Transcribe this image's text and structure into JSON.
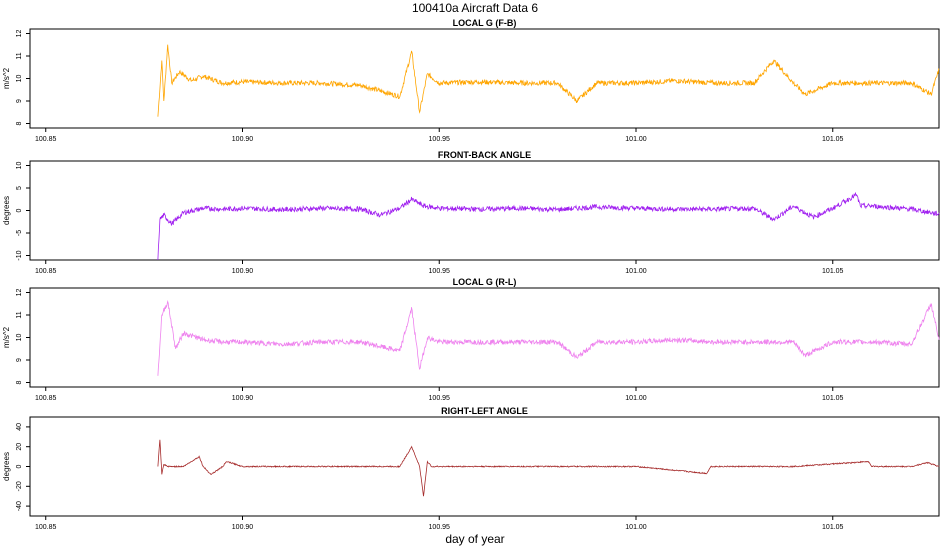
{
  "figure": {
    "title": "100410a   Aircraft Data 6",
    "xlabel": "day of year"
  },
  "chart_data": [
    {
      "type": "line",
      "title": "LOCAL G (F-B)",
      "ylabel": "m/s^2",
      "color": "#FFA500",
      "xlim": [
        100.846,
        101.077
      ],
      "ylim": [
        7.8,
        12.2
      ],
      "xticks": [
        100.85,
        100.9,
        100.95,
        101.0,
        101.05
      ],
      "xtick_labels": [
        "100.85",
        "100.90",
        "100.95",
        "101.00",
        "101.05"
      ],
      "yticks": [
        8,
        9,
        10,
        11,
        12
      ],
      "ytick_labels": [
        "8",
        "9",
        "10",
        "11",
        "12"
      ],
      "series": [
        {
          "x": [
            100.8785,
            100.8795,
            100.88,
            100.881,
            100.882,
            100.884,
            100.887,
            100.89,
            100.895,
            100.9,
            100.91,
            100.92,
            100.93,
            100.94,
            100.943,
            100.945,
            100.947,
            100.95,
            100.96,
            100.97,
            100.98,
            100.985,
            100.99,
            101.0,
            101.01,
            101.02,
            101.03,
            101.035,
            101.04,
            101.043,
            101.05,
            101.06,
            101.07,
            101.075,
            101.077
          ],
          "y": [
            8.3,
            10.8,
            9.0,
            11.5,
            9.8,
            10.3,
            9.9,
            10.1,
            9.8,
            9.85,
            9.8,
            9.8,
            9.7,
            9.2,
            11.2,
            8.5,
            10.2,
            9.8,
            9.85,
            9.8,
            9.8,
            9.0,
            9.8,
            9.8,
            9.9,
            9.8,
            9.8,
            10.8,
            9.8,
            9.3,
            9.8,
            9.8,
            9.8,
            9.3,
            10.4
          ]
        }
      ]
    },
    {
      "type": "line",
      "title": "FRONT-BACK ANGLE",
      "ylabel": "degrees",
      "color": "#A020F0",
      "xlim": [
        100.846,
        101.077
      ],
      "ylim": [
        -11,
        11
      ],
      "xticks": [
        100.85,
        100.9,
        100.95,
        101.0,
        101.05
      ],
      "xtick_labels": [
        "100.85",
        "100.90",
        "100.95",
        "101.00",
        "101.05"
      ],
      "yticks": [
        -10,
        -5,
        0,
        5,
        10
      ],
      "ytick_labels": [
        "-10",
        "-5",
        "0",
        "5",
        "10"
      ],
      "series": [
        {
          "x": [
            100.8785,
            100.879,
            100.88,
            100.882,
            100.885,
            100.89,
            100.895,
            100.9,
            100.91,
            100.92,
            100.93,
            100.935,
            100.94,
            100.943,
            100.946,
            100.95,
            100.96,
            100.97,
            100.98,
            100.99,
            101.0,
            101.01,
            101.02,
            101.03,
            101.035,
            101.04,
            101.045,
            101.05,
            101.056,
            101.057,
            101.06,
            101.07,
            101.077
          ],
          "y": [
            -11,
            -2,
            -1,
            -3,
            -0.5,
            0.5,
            0.3,
            0.5,
            0.2,
            0.5,
            0.3,
            -1,
            0.5,
            2.5,
            1,
            0.5,
            0.3,
            0.5,
            0.2,
            0.8,
            0.5,
            0.3,
            0.3,
            0.5,
            -2,
            1,
            -1.5,
            0.5,
            3.5,
            1,
            1,
            0.3,
            -0.8
          ]
        }
      ]
    },
    {
      "type": "line",
      "title": "LOCAL G (R-L)",
      "ylabel": "m/s^2",
      "color": "#EE82EE",
      "xlim": [
        100.846,
        101.077
      ],
      "ylim": [
        7.8,
        12.2
      ],
      "xticks": [
        100.85,
        100.9,
        100.95,
        101.0,
        101.05
      ],
      "xtick_labels": [
        "100.85",
        "100.90",
        "100.95",
        "101.00",
        "101.05"
      ],
      "yticks": [
        8,
        9,
        10,
        11,
        12
      ],
      "ytick_labels": [
        "8",
        "9",
        "10",
        "11",
        "12"
      ],
      "series": [
        {
          "x": [
            100.8785,
            100.8795,
            100.881,
            100.883,
            100.885,
            100.89,
            100.895,
            100.9,
            100.91,
            100.92,
            100.93,
            100.94,
            100.943,
            100.945,
            100.947,
            100.95,
            100.96,
            100.97,
            100.98,
            100.985,
            100.99,
            101.0,
            101.01,
            101.02,
            101.03,
            101.04,
            101.043,
            101.05,
            101.06,
            101.07,
            101.075,
            101.077
          ],
          "y": [
            8.3,
            11.0,
            11.6,
            9.5,
            10.2,
            9.9,
            9.8,
            9.8,
            9.7,
            9.8,
            9.8,
            9.4,
            11.3,
            8.6,
            10.0,
            9.8,
            9.8,
            9.8,
            9.8,
            9.1,
            9.8,
            9.8,
            9.9,
            9.8,
            9.8,
            9.8,
            9.2,
            9.8,
            9.8,
            9.7,
            11.5,
            9.9
          ]
        }
      ]
    },
    {
      "type": "line",
      "title": "RIGHT-LEFT ANGLE",
      "ylabel": "degrees",
      "color": "#A52A2A",
      "xlim": [
        100.846,
        101.077
      ],
      "ylim": [
        -50,
        50
      ],
      "xticks": [
        100.85,
        100.9,
        100.95,
        101.0,
        101.05
      ],
      "xtick_labels": [
        "100.85",
        "100.90",
        "100.95",
        "101.00",
        "101.05"
      ],
      "yticks": [
        -40,
        -20,
        0,
        20,
        40
      ],
      "ytick_labels": [
        "-40",
        "-20",
        "0",
        "20",
        "40"
      ],
      "series": [
        {
          "x": [
            100.8785,
            100.879,
            100.8795,
            100.88,
            100.881,
            100.885,
            100.889,
            100.89,
            100.892,
            100.895,
            100.896,
            100.9,
            100.91,
            100.93,
            100.94,
            100.943,
            100.944,
            100.945,
            100.946,
            100.947,
            100.948,
            100.95,
            100.97,
            101.0,
            101.018,
            101.019,
            101.02,
            101.04,
            101.059,
            101.06,
            101.07,
            101.074,
            101.077
          ],
          "y": [
            0,
            27,
            -8,
            2,
            0,
            0,
            10,
            0,
            -8,
            0,
            5,
            0,
            0,
            0,
            0,
            20,
            10,
            0,
            -30,
            5,
            0,
            0,
            0,
            0,
            -7,
            0,
            0,
            0,
            5,
            0,
            0,
            4,
            0
          ]
        }
      ]
    }
  ]
}
